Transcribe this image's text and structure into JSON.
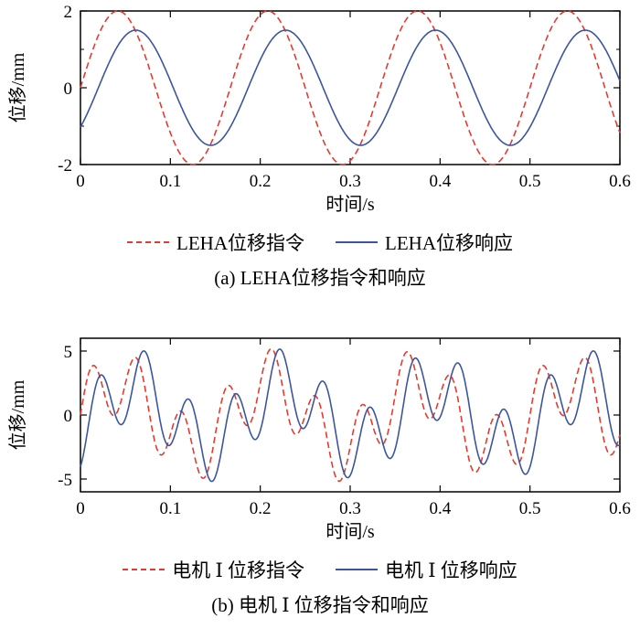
{
  "chart_data": [
    {
      "type": "line",
      "title": "",
      "xlabel": "时间/s",
      "ylabel": "位移/mm",
      "xlim": [
        0,
        0.6
      ],
      "ylim": [
        -2,
        2
      ],
      "xticks": [
        0,
        0.1,
        0.2,
        0.3,
        0.4,
        0.5,
        0.6
      ],
      "xtick_labels": [
        "0",
        "0.1",
        "0.2",
        "0.3",
        "0.4",
        "0.5",
        "0.6"
      ],
      "yticks": [
        -2,
        0,
        2
      ],
      "ytick_labels": [
        "-2",
        "0",
        "2"
      ],
      "yminor_ticks": [
        -1,
        1
      ],
      "grid": false,
      "legend_position": "below",
      "series": [
        {
          "name": "LEHA位移指令",
          "line_style": "dashed",
          "color": "#e8392f",
          "waveform": "sine",
          "components": [
            {
              "amplitude": 2.0,
              "frequency_hz": 6,
              "phase_rad": 0
            }
          ]
        },
        {
          "name": "LEHA位移响应",
          "line_style": "solid",
          "color": "#3d55a0",
          "waveform": "sine",
          "components": [
            {
              "amplitude": 1.5,
              "frequency_hz": 6,
              "phase_rad": -0.75
            }
          ]
        }
      ],
      "caption": "(a) LEHA位移指令和响应"
    },
    {
      "type": "line",
      "title": "",
      "xlabel": "时间/s",
      "ylabel": "位移/mm",
      "xlim": [
        0,
        0.6
      ],
      "ylim": [
        -6,
        6
      ],
      "xticks": [
        0,
        0.1,
        0.2,
        0.3,
        0.4,
        0.5,
        0.6
      ],
      "xtick_labels": [
        "0",
        "0.1",
        "0.2",
        "0.3",
        "0.4",
        "0.5",
        "0.6"
      ],
      "yticks": [
        -5,
        0,
        5
      ],
      "ytick_labels": [
        "-5",
        "0",
        "5"
      ],
      "yminor_ticks": [],
      "grid": false,
      "legend_position": "below",
      "series": [
        {
          "name": "电机 Ⅰ 位移指令",
          "line_style": "dashed",
          "color": "#e8392f",
          "waveform": "sum-of-sines",
          "components": [
            {
              "amplitude": 2.6,
              "frequency_hz": 6,
              "phase_rad": 0
            },
            {
              "amplitude": 2.6,
              "frequency_hz": 20,
              "phase_rad": 0
            }
          ]
        },
        {
          "name": "电机 Ⅰ 位移响应",
          "line_style": "solid",
          "color": "#3d55a0",
          "waveform": "sum-of-sines",
          "components": [
            {
              "amplitude": 2.4,
              "frequency_hz": 6,
              "phase_rad": -0.7
            },
            {
              "amplitude": 2.8,
              "frequency_hz": 20,
              "phase_rad": -1.1
            }
          ]
        }
      ],
      "caption": "(b) 电机 Ⅰ 位移指令和响应"
    }
  ]
}
